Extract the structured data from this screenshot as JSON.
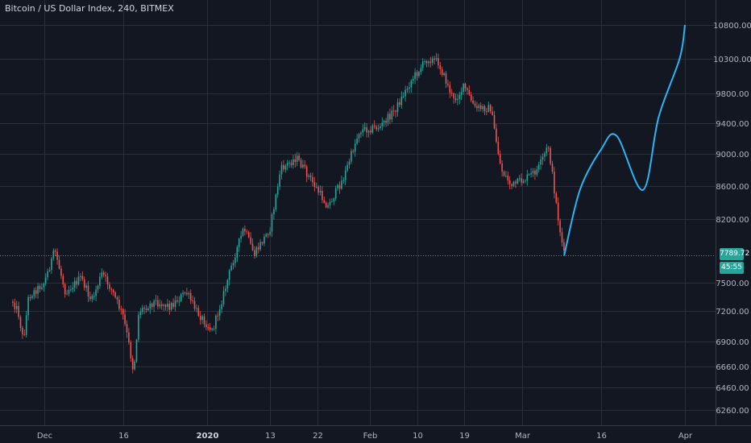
{
  "colors": {
    "background": "#131722",
    "grid": "#2a2e39",
    "candle_up": "#26a69a",
    "candle_down": "#ef5350",
    "projection": "#29b6f6",
    "price_line": "#26a69a"
  },
  "header": {
    "title": "Bitcoin / US Dollar Index, 240, BITMEX"
  },
  "price_badge": {
    "price": "7789.72",
    "countdown": "45:55"
  },
  "chart_data": {
    "type": "line",
    "title": "Bitcoin / US Dollar Index, 240, BITMEX",
    "x_axis": {
      "ticks": [
        "Dec",
        "16",
        "2020",
        "13",
        "22",
        "Feb",
        "10",
        "19",
        "Mar",
        "16",
        "Apr"
      ],
      "bold_ticks": [
        "2020"
      ]
    },
    "y_axis": {
      "scale": "log",
      "range": [
        6120,
        11300
      ],
      "ticks": [
        "10800.00",
        "10300.00",
        "9800.00",
        "9400.00",
        "9000.00",
        "8600.00",
        "8200.00",
        "7500.00",
        "7200.00",
        "6900.00",
        "6660.00",
        "6460.00",
        "6260.00"
      ]
    },
    "grid": true,
    "price_line": 7789.72,
    "series": [
      {
        "values": [
          [
            "Nov 25",
            7300
          ],
          [
            "Nov 26",
            7200
          ],
          [
            "Nov 27",
            6900
          ],
          [
            "Nov 28",
            7350
          ],
          [
            "Dec 1",
            7500
          ],
          [
            "Dec 3",
            7850
          ],
          [
            "Dec 5",
            7400
          ],
          [
            "Dec 8",
            7550
          ],
          [
            "Dec 10",
            7300
          ],
          [
            "Dec 12",
            7600
          ],
          [
            "Dec 14",
            7400
          ],
          [
            "Dec 16",
            7150
          ],
          [
            "Dec 17",
            6900
          ],
          [
            "Dec 18",
            6600
          ],
          [
            "Dec 19",
            7200
          ],
          [
            "Dec 22",
            7300
          ],
          [
            "Dec 25",
            7250
          ],
          [
            "Dec 28",
            7400
          ],
          [
            "Dec 30",
            7200
          ],
          [
            "Jan 2",
            7000
          ],
          [
            "Jan 4",
            7350
          ],
          [
            "Jan 6",
            7750
          ],
          [
            "Jan 8",
            8100
          ],
          [
            "Jan 10",
            7800
          ],
          [
            "Jan 13",
            8100
          ],
          [
            "Jan 15",
            8800
          ],
          [
            "Jan 18",
            8950
          ],
          [
            "Jan 21",
            8650
          ],
          [
            "Jan 24",
            8350
          ],
          [
            "Jan 27",
            8700
          ],
          [
            "Jan 30",
            9300
          ],
          [
            "Feb 3",
            9350
          ],
          [
            "Feb 6",
            9600
          ],
          [
            "Feb 9",
            10000
          ],
          [
            "Feb 12",
            10300
          ],
          [
            "Feb 14",
            10250
          ],
          [
            "Feb 17",
            9700
          ],
          [
            "Feb 19",
            9900
          ],
          [
            "Feb 21",
            9600
          ],
          [
            "Feb 24",
            9600
          ],
          [
            "Feb 26",
            8800
          ],
          [
            "Feb 28",
            8600
          ],
          [
            "Mar 2",
            8700
          ],
          [
            "Mar 4",
            8800
          ],
          [
            "Mar 6",
            9100
          ],
          [
            "Mar 8",
            8150
          ],
          [
            "Mar 9",
            7789.72
          ]
        ]
      },
      {
        "values": [
          [
            "Mar 9",
            7789.72
          ],
          [
            "Mar 12",
            8550
          ],
          [
            "Mar 16",
            9050
          ],
          [
            "Mar 19",
            9230
          ],
          [
            "Mar 24",
            8550
          ],
          [
            "Mar 27",
            9480
          ],
          [
            "Mar 31",
            10300
          ],
          [
            "Apr 1",
            10800
          ]
        ]
      }
    ]
  }
}
